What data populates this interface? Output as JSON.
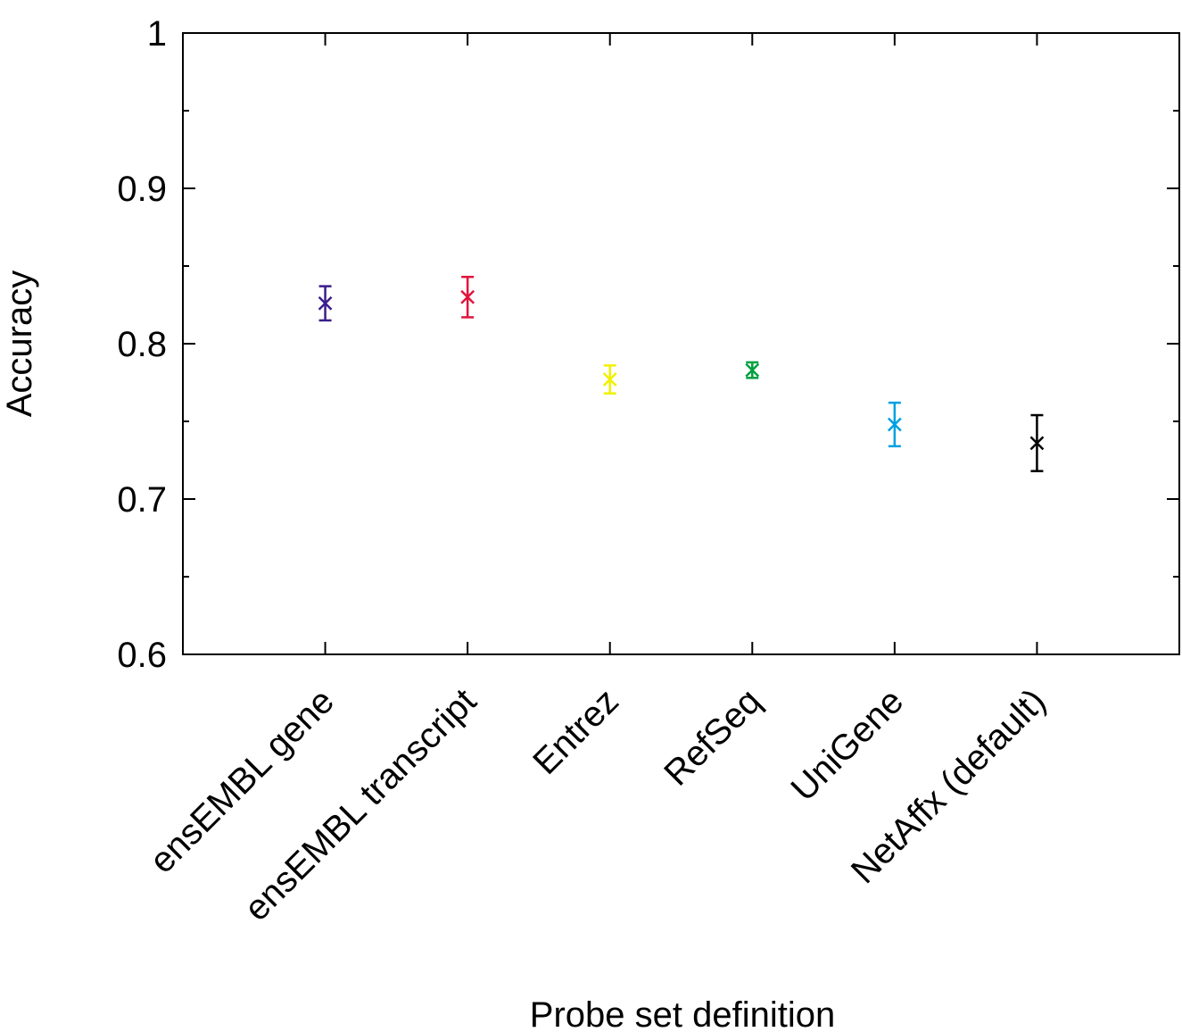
{
  "chart_data": {
    "type": "errorbar",
    "x_label": "Probe set definition",
    "y_label": "Accuracy",
    "categories": [
      "ensEMBL gene",
      "ensEMBL transcript",
      "Entrez",
      "RefSeq",
      "UniGene",
      "NetAffx (default)"
    ],
    "values": [
      0.826,
      0.83,
      0.777,
      0.783,
      0.748,
      0.736
    ],
    "errors": [
      0.011,
      0.013,
      0.009,
      0.005,
      0.014,
      0.018
    ],
    "colors": [
      "#3b1e8c",
      "#e0143c",
      "#f0f000",
      "#00a040",
      "#00a0e0",
      "#000000"
    ],
    "ylim": [
      0.6,
      1
    ],
    "yticks": [
      0.6,
      0.7,
      0.8,
      0.9,
      1
    ],
    "minor_yticks": [
      0.65,
      0.75,
      0.85,
      0.95
    ]
  }
}
